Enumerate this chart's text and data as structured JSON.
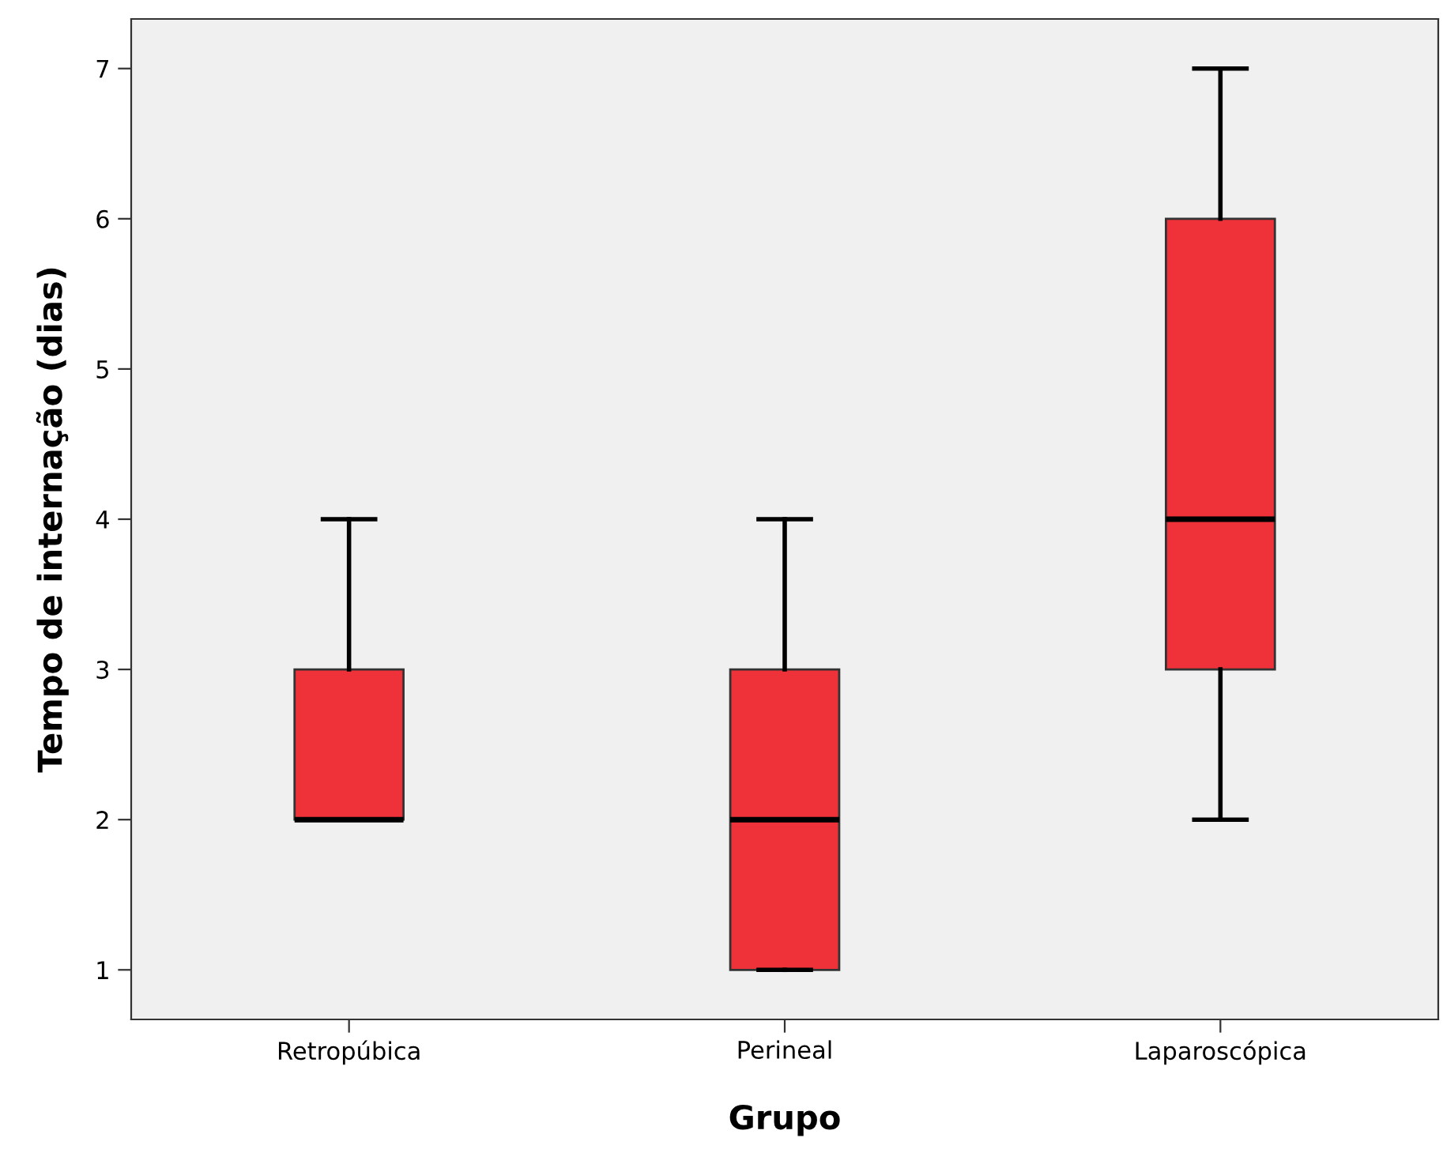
{
  "chart_data": {
    "type": "box",
    "xlabel": "Grupo",
    "ylabel": "Tempo de internação (dias)",
    "categories": [
      "Retropúbica",
      "Perineal",
      "Laparoscópica"
    ],
    "boxes": [
      {
        "low": 2,
        "q1": 2,
        "median": 2,
        "q3": 3,
        "high": 4
      },
      {
        "low": 1,
        "q1": 1,
        "median": 2,
        "q3": 3,
        "high": 4
      },
      {
        "low": 2,
        "q1": 3,
        "median": 4,
        "q3": 6,
        "high": 7
      }
    ],
    "color": "#ef3239",
    "ylim": [
      0.67,
      7.33
    ],
    "yticks": [
      1,
      2,
      3,
      4,
      5,
      6,
      7
    ],
    "grid": false,
    "legend": false
  }
}
